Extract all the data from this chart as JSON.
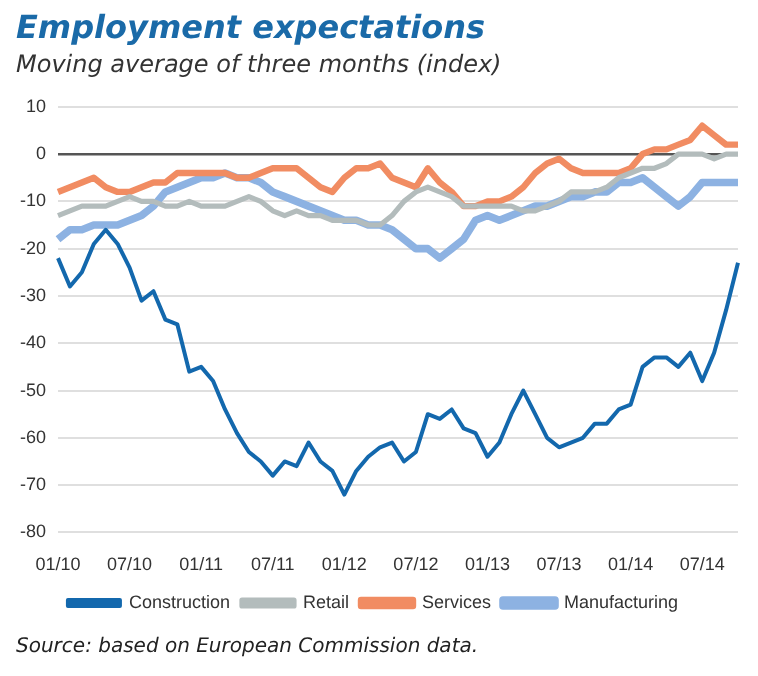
{
  "chart_data": {
    "type": "line",
    "title": "Employment expectations",
    "subtitle": "Moving average of three months (index)",
    "categories": [
      "01/10",
      null,
      null,
      null,
      null,
      null,
      "07/10",
      null,
      null,
      null,
      null,
      null,
      "01/11",
      null,
      null,
      null,
      null,
      null,
      "07/11",
      null,
      null,
      null,
      null,
      null,
      "01/12",
      null,
      null,
      null,
      null,
      null,
      "07/12",
      null,
      null,
      null,
      null,
      null,
      "01/13",
      null,
      null,
      null,
      null,
      null,
      "07/13",
      null,
      null,
      null,
      null,
      null,
      "01/14",
      null,
      null,
      null,
      null,
      null,
      "07/14",
      null,
      null,
      null
    ],
    "series": [
      {
        "name": "Construction",
        "color": "#1368ad",
        "values": [
          -22,
          -28,
          -25,
          -19,
          -16,
          -19,
          -24,
          -31,
          -29,
          -35,
          -36,
          -46,
          -45,
          -48,
          -54,
          -59,
          -63,
          -65,
          -68,
          -65,
          -66,
          -61,
          -65,
          -67,
          -72,
          -67,
          -64,
          -62,
          -61,
          -65,
          -63,
          -55,
          -56,
          -54,
          -58,
          -59,
          -64,
          -61,
          -55,
          -50,
          -55,
          -60,
          -62,
          -61,
          -60,
          -57,
          -57,
          -54,
          -53,
          -45,
          -43,
          -43,
          -45,
          -42,
          -48,
          -42,
          -33,
          -23
        ]
      },
      {
        "name": "Retail",
        "color": "#b3bcbc",
        "values": [
          -13,
          -12,
          -11,
          -11,
          -11,
          -10,
          -9,
          -10,
          -10,
          -11,
          -11,
          -10,
          -11,
          -11,
          -11,
          -10,
          -9,
          -10,
          -12,
          -13,
          -12,
          -13,
          -13,
          -14,
          -14,
          -14,
          -15,
          -15,
          -13,
          -10,
          -8,
          -7,
          -8,
          -9,
          -11,
          -11,
          -11,
          -11,
          -11,
          -12,
          -12,
          -11,
          -10,
          -8,
          -8,
          -8,
          -7,
          -5,
          -4,
          -3,
          -3,
          -2,
          0,
          0,
          0,
          -1,
          0,
          0
        ]
      },
      {
        "name": "Services",
        "color": "#f18c62",
        "values": [
          -8,
          -7,
          -6,
          -5,
          -7,
          -8,
          -8,
          -7,
          -6,
          -6,
          -4,
          -4,
          -4,
          -4,
          -4,
          -5,
          -5,
          -4,
          -3,
          -3,
          -3,
          -5,
          -7,
          -8,
          -5,
          -3,
          -3,
          -2,
          -5,
          -6,
          -7,
          -3,
          -6,
          -8,
          -11,
          -11,
          -10,
          -10,
          -9,
          -7,
          -4,
          -2,
          -1,
          -3,
          -4,
          -4,
          -4,
          -4,
          -3,
          0,
          1,
          1,
          2,
          3,
          6,
          4,
          2,
          2
        ]
      },
      {
        "name": "Manufacturing",
        "color": "#8db2e2",
        "values": [
          -18,
          -16,
          -16,
          -15,
          -15,
          -15,
          -14,
          -13,
          -11,
          -8,
          -7,
          -6,
          -5,
          -5,
          -4,
          -5,
          -5,
          -6,
          -8,
          -9,
          -10,
          -11,
          -12,
          -13,
          -14,
          -14,
          -15,
          -15,
          -16,
          -18,
          -20,
          -20,
          -22,
          -20,
          -18,
          -14,
          -13,
          -14,
          -13,
          -12,
          -11,
          -11,
          -10,
          -9,
          -9,
          -8,
          -8,
          -6,
          -6,
          -5,
          -7,
          -9,
          -11,
          -9,
          -6,
          -6,
          -6,
          -6
        ]
      }
    ],
    "ylim": [
      -80,
      10
    ],
    "yticks": [
      -80,
      -70,
      -60,
      -50,
      -40,
      -30,
      -20,
      -10,
      0,
      10
    ],
    "grid": "y",
    "legend": "bottom",
    "marker": "none",
    "line_style": "solid",
    "annotations": [
      "Source: based on European Commission data."
    ]
  }
}
